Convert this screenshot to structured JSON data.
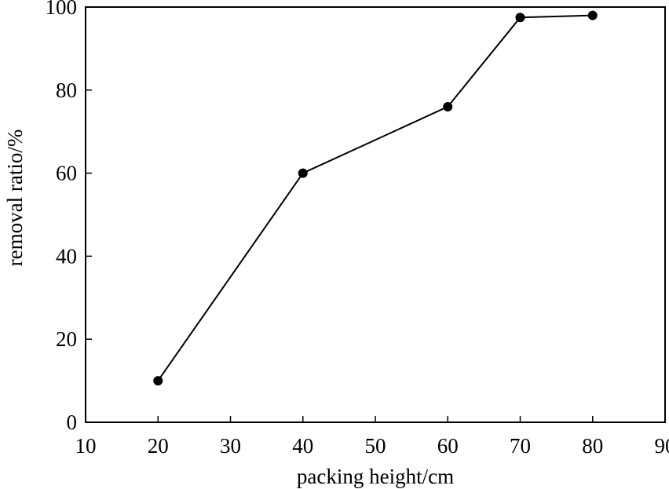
{
  "chart_data": {
    "type": "line",
    "title": "",
    "xlabel": "packing height/cm",
    "ylabel": "removal ratio/%",
    "xlim": [
      10,
      90
    ],
    "ylim": [
      0,
      100
    ],
    "xticks": [
      10,
      20,
      30,
      40,
      50,
      60,
      70,
      80,
      90
    ],
    "yticks": [
      0,
      20,
      40,
      60,
      80,
      100
    ],
    "grid": false,
    "legend": "none",
    "series": [
      {
        "x": [
          20,
          40,
          60,
          70,
          80
        ],
        "y": [
          10,
          60,
          76,
          97.5,
          98
        ],
        "color": "#000000",
        "marker": "circle"
      }
    ]
  }
}
